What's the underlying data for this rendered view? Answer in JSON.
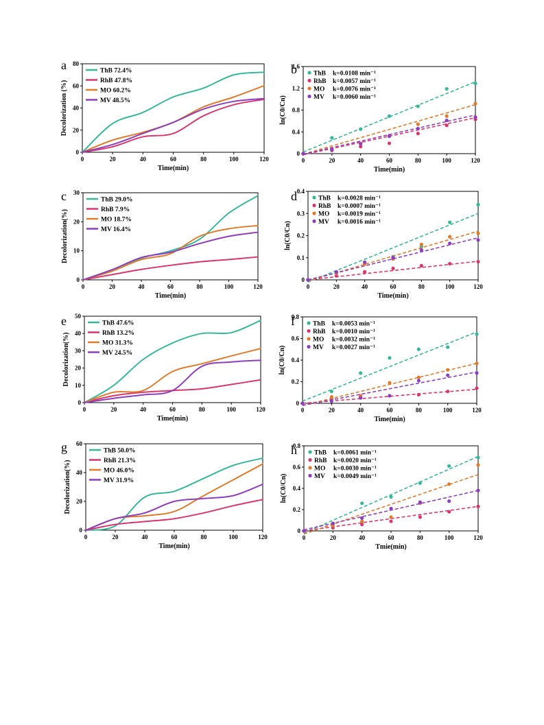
{
  "colors": {
    "ThB": "#35b89a",
    "RhB": "#d9356f",
    "MO": "#e07b2a",
    "MV": "#8e3dbf"
  },
  "chart_data": [
    {
      "panel": "a",
      "type": "line",
      "xlabel": "Time(min)",
      "ylabel": "Decolorization (%)",
      "xlim": [
        0,
        120
      ],
      "ylim": [
        0,
        80
      ],
      "xticks": [
        0,
        20,
        40,
        60,
        80,
        100,
        120
      ],
      "yticks": [
        0,
        20,
        40,
        60,
        80
      ],
      "legend_position": "top-left",
      "x": [
        0,
        20,
        40,
        60,
        80,
        100,
        120
      ],
      "series": [
        {
          "name": "ThB 72.4%",
          "key": "ThB",
          "values": [
            0,
            26,
            36,
            50,
            58,
            70,
            72.4
          ]
        },
        {
          "name": "RhB 47.8%",
          "key": "RhB",
          "values": [
            0,
            5,
            14,
            17,
            33,
            43,
            47.8
          ]
        },
        {
          "name": "MO 60.2%",
          "key": "MO",
          "values": [
            0,
            11,
            18,
            27,
            41,
            50,
            60.2
          ]
        },
        {
          "name": "MV 48.5%",
          "key": "MV",
          "values": [
            0,
            7,
            17,
            27,
            39,
            46,
            48.5
          ]
        }
      ]
    },
    {
      "panel": "b",
      "type": "scatter",
      "xlabel": "Time(min)",
      "ylabel": "ln(C0/Cn)",
      "xlim": [
        0,
        120
      ],
      "ylim": [
        0,
        1.6
      ],
      "xticks": [
        0,
        20,
        40,
        60,
        80,
        100,
        120
      ],
      "yticks": [
        "0",
        "0.4",
        "0.8",
        "1.2",
        "1.6"
      ],
      "legend_position": "top-left",
      "x": [
        0,
        20,
        40,
        60,
        80,
        100,
        120
      ],
      "series": [
        {
          "name": "ThB",
          "k_label": "k=0.0108 min⁻¹",
          "key": "ThB",
          "values": [
            0,
            0.29,
            0.45,
            0.69,
            0.87,
            1.19,
            1.29
          ],
          "fit": [
            0.03,
            1.32
          ]
        },
        {
          "name": "RhB",
          "k_label": "k=0.0057 min⁻¹",
          "key": "RhB",
          "values": [
            0,
            0.06,
            0.13,
            0.19,
            0.37,
            0.52,
            0.63
          ],
          "fit": [
            -0.02,
            0.66
          ]
        },
        {
          "name": "MO",
          "k_label": "k=0.0076 min⁻¹",
          "key": "MO",
          "values": [
            0,
            0.09,
            0.19,
            0.33,
            0.54,
            0.69,
            0.92
          ],
          "fit": [
            -0.01,
            0.9
          ]
        },
        {
          "name": "MV",
          "k_label": "k=0.0060 min⁻¹",
          "key": "MV",
          "values": [
            0,
            0.07,
            0.18,
            0.32,
            0.46,
            0.61,
            0.67
          ],
          "fit": [
            -0.01,
            0.71
          ]
        }
      ]
    },
    {
      "panel": "c",
      "type": "line",
      "xlabel": "Time(min)",
      "ylabel": "Decolorization(%)",
      "xlim": [
        0,
        120
      ],
      "ylim": [
        0,
        30
      ],
      "xticks": [
        0,
        20,
        40,
        60,
        80,
        100,
        120
      ],
      "yticks": [
        0,
        10,
        20,
        30
      ],
      "legend_position": "top-left",
      "x": [
        0,
        20,
        40,
        60,
        80,
        100,
        120
      ],
      "series": [
        {
          "name": "ThB 29.0%",
          "key": "ThB",
          "values": [
            0,
            3.5,
            7.5,
            10,
            14,
            23,
            29
          ]
        },
        {
          "name": "RhB 7.9%",
          "key": "RhB",
          "values": [
            0,
            1.8,
            3.6,
            5,
            6.2,
            7,
            7.9
          ]
        },
        {
          "name": "MO 18.7%",
          "key": "MO",
          "values": [
            0,
            3,
            7,
            9,
            15,
            17.6,
            18.7
          ]
        },
        {
          "name": "MV 16.4%",
          "key": "MV",
          "values": [
            0,
            3.5,
            7.7,
            9.5,
            12.5,
            15,
            16.4
          ]
        }
      ]
    },
    {
      "panel": "d",
      "type": "scatter",
      "xlabel": "Time(min)",
      "ylabel": "ln(C0/Cn)",
      "xlim": [
        0,
        120
      ],
      "ylim": [
        0,
        0.4
      ],
      "xticks": [
        0,
        20,
        40,
        60,
        80,
        100,
        120
      ],
      "yticks": [
        "0",
        "0.1",
        "0.2",
        "0.3",
        "0.4"
      ],
      "legend_position": "top-left",
      "x": [
        0,
        20,
        40,
        60,
        80,
        100,
        120
      ],
      "series": [
        {
          "name": "ThB",
          "k_label": "k=0.0028 min⁻¹",
          "key": "ThB",
          "values": [
            0,
            0.035,
            0.075,
            0.105,
            0.15,
            0.26,
            0.34
          ],
          "fit": [
            -0.01,
            0.3
          ]
        },
        {
          "name": "RhB",
          "k_label": "k=0.0007 min⁻¹",
          "key": "RhB",
          "values": [
            0,
            0.018,
            0.036,
            0.052,
            0.064,
            0.073,
            0.082
          ],
          "fit": [
            0,
            0.084
          ]
        },
        {
          "name": "MO",
          "k_label": "k=0.0019 min⁻¹",
          "key": "MO",
          "values": [
            0,
            0.03,
            0.072,
            0.094,
            0.16,
            0.195,
            0.21
          ],
          "fit": [
            -0.005,
            0.22
          ]
        },
        {
          "name": "MV",
          "k_label": "k=0.0016 min⁻¹",
          "key": "MV",
          "values": [
            0,
            0.036,
            0.08,
            0.1,
            0.135,
            0.165,
            0.18
          ],
          "fit": [
            0,
            0.19
          ]
        }
      ]
    },
    {
      "panel": "e",
      "type": "line",
      "xlabel": "Time(min)",
      "ylabel": "Decolorization(%)",
      "xlim": [
        0,
        120
      ],
      "ylim": [
        0,
        50
      ],
      "xticks": [
        0,
        20,
        40,
        60,
        80,
        100,
        120
      ],
      "yticks": [
        0,
        10,
        20,
        30,
        40,
        50
      ],
      "legend_position": "top-left",
      "x": [
        0,
        20,
        40,
        60,
        80,
        100,
        120
      ],
      "series": [
        {
          "name": "ThB 47.6%",
          "key": "ThB",
          "values": [
            0,
            10,
            25,
            34.5,
            40,
            40.5,
            47.6
          ]
        },
        {
          "name": "RhB 13.2%",
          "key": "RhB",
          "values": [
            0,
            4,
            6,
            7,
            8,
            10.5,
            13.2
          ]
        },
        {
          "name": "MO 31.3%",
          "key": "MO",
          "values": [
            0,
            6,
            7,
            18,
            22.5,
            27,
            31.3
          ]
        },
        {
          "name": "MV 24.5%",
          "key": "MV",
          "values": [
            0,
            2.5,
            4.5,
            7,
            21,
            23.5,
            24.5
          ]
        }
      ]
    },
    {
      "panel": "f",
      "type": "scatter",
      "xlabel": "Time(min)",
      "ylabel": "ln(C0/Cn)",
      "xlim": [
        0,
        120
      ],
      "ylim": [
        0,
        0.8
      ],
      "xticks": [
        0,
        20,
        40,
        60,
        80,
        100,
        120
      ],
      "yticks": [
        "0",
        "0.2",
        "0.4",
        "0.6",
        "0.8"
      ],
      "legend_position": "top-left",
      "x": [
        0,
        20,
        40,
        60,
        80,
        100,
        120
      ],
      "series": [
        {
          "name": "ThB",
          "k_label": "k=0.0053 min⁻¹",
          "key": "ThB",
          "values": [
            0,
            0.11,
            0.28,
            0.42,
            0.5,
            0.52,
            0.64
          ],
          "fit": [
            0.02,
            0.66
          ]
        },
        {
          "name": "RhB",
          "k_label": "k=0.0010 min⁻¹",
          "key": "RhB",
          "values": [
            0,
            0.04,
            0.06,
            0.07,
            0.08,
            0.11,
            0.14
          ],
          "fit": [
            0,
            0.13
          ]
        },
        {
          "name": "MO",
          "k_label": "k=0.0032 min⁻¹",
          "key": "MO",
          "values": [
            0,
            0.06,
            0.07,
            0.19,
            0.24,
            0.31,
            0.37
          ],
          "fit": [
            -0.02,
            0.37
          ]
        },
        {
          "name": "MV",
          "k_label": "k=0.0027 min⁻¹",
          "key": "MV",
          "values": [
            0,
            0.02,
            0.05,
            0.07,
            0.21,
            0.26,
            0.28
          ],
          "fit": [
            -0.02,
            0.29
          ]
        }
      ]
    },
    {
      "panel": "g",
      "type": "line",
      "xlabel": "Time(min)",
      "ylabel": "Decolorization(%)",
      "xlim": [
        0,
        120
      ],
      "ylim": [
        0,
        60
      ],
      "xticks": [
        0,
        20,
        40,
        60,
        80,
        100,
        120
      ],
      "yticks": [
        0,
        20,
        40,
        60
      ],
      "legend_position": "top-left",
      "x": [
        0,
        20,
        40,
        60,
        80,
        100,
        120
      ],
      "series": [
        {
          "name": "ThB 50.0%",
          "key": "ThB",
          "values": [
            0,
            3,
            23,
            27,
            36,
            45,
            50
          ]
        },
        {
          "name": "RhB 21.3%",
          "key": "RhB",
          "values": [
            0,
            4,
            6,
            8,
            12,
            17,
            21.3
          ]
        },
        {
          "name": "MO 46.0%",
          "key": "MO",
          "values": [
            0,
            8,
            10,
            13,
            24,
            35,
            46
          ]
        },
        {
          "name": "MV 31.9%",
          "key": "MV",
          "values": [
            0,
            8,
            12,
            20,
            22,
            24,
            31.9
          ]
        }
      ]
    },
    {
      "panel": "h",
      "type": "scatter",
      "xlabel": "Tmie(min)",
      "ylabel": "ln(C0/Cn)",
      "xlim": [
        0,
        120
      ],
      "ylim": [
        0,
        0.8
      ],
      "xticks": [
        0,
        20,
        40,
        60,
        80,
        100,
        120
      ],
      "yticks": [
        "0",
        "0.2",
        "0.4",
        "0.6",
        "0.8"
      ],
      "legend_position": "top-left",
      "x": [
        0,
        20,
        40,
        60,
        80,
        100,
        120
      ],
      "series": [
        {
          "name": "ThB",
          "k_label": "k=0.0061 min⁻¹",
          "key": "ThB",
          "values": [
            0,
            0.07,
            0.26,
            0.32,
            0.45,
            0.61,
            0.69
          ],
          "fit": [
            -0.02,
            0.7
          ]
        },
        {
          "name": "RhB",
          "k_label": "k=0.0020 min⁻¹",
          "key": "RhB",
          "values": [
            0,
            0.03,
            0.06,
            0.09,
            0.13,
            0.18,
            0.23
          ],
          "fit": [
            0,
            0.23
          ]
        },
        {
          "name": "MO",
          "k_label": "k=0.0030 min⁻¹",
          "key": "MO",
          "values": [
            0,
            0.05,
            0.09,
            0.13,
            0.26,
            0.44,
            0.62
          ],
          "fit": [
            -0.03,
            0.53
          ]
        },
        {
          "name": "MV",
          "k_label": "k=0.0049 min⁻¹",
          "key": "MV",
          "values": [
            0,
            0.07,
            0.12,
            0.21,
            0.27,
            0.28,
            0.38
          ],
          "fit": [
            0.01,
            0.38
          ]
        }
      ]
    }
  ]
}
